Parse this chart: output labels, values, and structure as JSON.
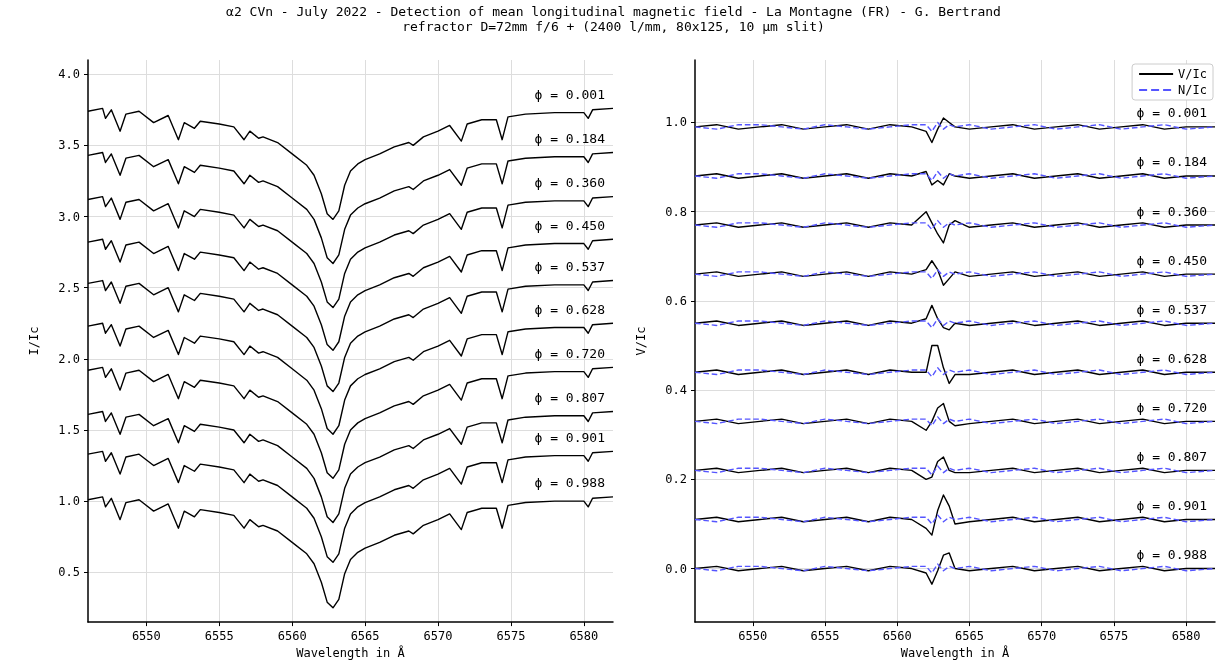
{
  "chart_data": [
    {
      "type": "line",
      "title": "α2 CVn - July 2022 - Detection of mean longitudinal magnetic field - La Montagne (FR) - G. Bertrand",
      "subtitle": "refractor D=72mm f/6 + (2400 l/mm, 80x125, 10 µm slit)",
      "xlabel": "Wavelength in Å",
      "ylabel": "I/Ic",
      "grid": true,
      "xlim": [
        6546,
        6582
      ],
      "xticks": [
        6550,
        6555,
        6560,
        6565,
        6570,
        6575,
        6580
      ],
      "ylim": [
        0.15,
        4.1
      ],
      "yticks": [
        {
          "value": 0.5,
          "label": "0.5"
        },
        {
          "value": 1,
          "label": "1.0"
        },
        {
          "value": 1.5,
          "label": "1.5"
        },
        {
          "value": 2,
          "label": "2.0"
        },
        {
          "value": 2.5,
          "label": "2.5"
        },
        {
          "value": 3,
          "label": "3.0"
        },
        {
          "value": 3.5,
          "label": "3.5"
        },
        {
          "value": 4,
          "label": "4.0"
        }
      ],
      "x": [
        6546,
        6547,
        6547.2,
        6547.6,
        6548.2,
        6548.6,
        6549.5,
        6550.5,
        6551.5,
        6552.2,
        6552.6,
        6553.3,
        6553.7,
        6555,
        6556,
        6556.7,
        6557.1,
        6557.7,
        6558,
        6559,
        6560,
        6561,
        6561.5,
        6562,
        6562.4,
        6562.8,
        6563.2,
        6563.6,
        6564,
        6564.5,
        6565,
        6566,
        6567,
        6568,
        6568.3,
        6569,
        6570,
        6570.8,
        6571.6,
        6572,
        6573,
        6574,
        6574.4,
        6574.8,
        6576,
        6578,
        6580,
        6580.3,
        6580.6,
        6582
      ],
      "series": [
        {
          "color": "#000000",
          "values": [
            3.74,
            3.76,
            3.69,
            3.75,
            3.6,
            3.72,
            3.74,
            3.66,
            3.71,
            3.54,
            3.66,
            3.62,
            3.67,
            3.65,
            3.63,
            3.54,
            3.6,
            3.55,
            3.56,
            3.52,
            3.44,
            3.36,
            3.29,
            3.16,
            3.02,
            2.98,
            3.04,
            3.22,
            3.32,
            3.37,
            3.4,
            3.44,
            3.49,
            3.52,
            3.5,
            3.56,
            3.6,
            3.64,
            3.53,
            3.65,
            3.68,
            3.68,
            3.54,
            3.7,
            3.72,
            3.73,
            3.73,
            3.69,
            3.75,
            3.76
          ]
        },
        {
          "color": "#000000",
          "values": [
            3.43,
            3.45,
            3.38,
            3.44,
            3.29,
            3.41,
            3.43,
            3.35,
            3.4,
            3.23,
            3.35,
            3.31,
            3.36,
            3.34,
            3.32,
            3.23,
            3.29,
            3.24,
            3.25,
            3.21,
            3.13,
            3.05,
            2.98,
            2.85,
            2.71,
            2.67,
            2.73,
            2.91,
            3.01,
            3.06,
            3.09,
            3.13,
            3.18,
            3.21,
            3.19,
            3.25,
            3.29,
            3.33,
            3.22,
            3.34,
            3.37,
            3.37,
            3.23,
            3.39,
            3.41,
            3.42,
            3.42,
            3.38,
            3.44,
            3.45
          ]
        },
        {
          "color": "#000000",
          "values": [
            3.12,
            3.14,
            3.07,
            3.13,
            2.98,
            3.1,
            3.12,
            3.04,
            3.09,
            2.92,
            3.04,
            3.0,
            3.05,
            3.03,
            3.01,
            2.92,
            2.98,
            2.93,
            2.94,
            2.9,
            2.82,
            2.74,
            2.67,
            2.54,
            2.4,
            2.36,
            2.42,
            2.6,
            2.7,
            2.75,
            2.78,
            2.82,
            2.87,
            2.9,
            2.88,
            2.94,
            2.98,
            3.02,
            2.91,
            3.03,
            3.06,
            3.06,
            2.92,
            3.08,
            3.1,
            3.11,
            3.11,
            3.07,
            3.13,
            3.14
          ]
        },
        {
          "color": "#000000",
          "values": [
            2.82,
            2.84,
            2.77,
            2.83,
            2.68,
            2.8,
            2.82,
            2.74,
            2.79,
            2.62,
            2.74,
            2.7,
            2.75,
            2.73,
            2.71,
            2.62,
            2.68,
            2.63,
            2.64,
            2.6,
            2.52,
            2.44,
            2.37,
            2.24,
            2.1,
            2.06,
            2.12,
            2.3,
            2.4,
            2.45,
            2.48,
            2.52,
            2.57,
            2.6,
            2.58,
            2.64,
            2.68,
            2.72,
            2.61,
            2.73,
            2.76,
            2.76,
            2.62,
            2.78,
            2.8,
            2.81,
            2.81,
            2.77,
            2.83,
            2.84
          ]
        },
        {
          "color": "#000000",
          "values": [
            2.53,
            2.55,
            2.48,
            2.54,
            2.39,
            2.51,
            2.53,
            2.45,
            2.5,
            2.33,
            2.45,
            2.41,
            2.46,
            2.44,
            2.42,
            2.33,
            2.39,
            2.34,
            2.35,
            2.31,
            2.23,
            2.15,
            2.08,
            1.95,
            1.81,
            1.77,
            1.83,
            2.01,
            2.11,
            2.16,
            2.19,
            2.23,
            2.28,
            2.31,
            2.29,
            2.35,
            2.39,
            2.43,
            2.32,
            2.44,
            2.47,
            2.47,
            2.33,
            2.49,
            2.51,
            2.52,
            2.52,
            2.48,
            2.54,
            2.55
          ]
        },
        {
          "color": "#000000",
          "values": [
            2.23,
            2.25,
            2.18,
            2.24,
            2.09,
            2.21,
            2.23,
            2.15,
            2.2,
            2.03,
            2.15,
            2.11,
            2.16,
            2.14,
            2.12,
            2.03,
            2.09,
            2.04,
            2.05,
            2.01,
            1.93,
            1.85,
            1.78,
            1.65,
            1.51,
            1.47,
            1.53,
            1.71,
            1.81,
            1.86,
            1.89,
            1.93,
            1.98,
            2.01,
            1.99,
            2.05,
            2.09,
            2.13,
            2.02,
            2.14,
            2.17,
            2.17,
            2.03,
            2.19,
            2.21,
            2.22,
            2.22,
            2.18,
            2.24,
            2.25
          ]
        },
        {
          "color": "#000000",
          "values": [
            1.92,
            1.94,
            1.87,
            1.93,
            1.78,
            1.9,
            1.92,
            1.84,
            1.89,
            1.72,
            1.84,
            1.8,
            1.85,
            1.83,
            1.81,
            1.72,
            1.78,
            1.73,
            1.74,
            1.7,
            1.62,
            1.54,
            1.47,
            1.34,
            1.2,
            1.16,
            1.22,
            1.4,
            1.5,
            1.55,
            1.58,
            1.62,
            1.67,
            1.7,
            1.68,
            1.74,
            1.78,
            1.82,
            1.71,
            1.83,
            1.86,
            1.86,
            1.72,
            1.88,
            1.9,
            1.91,
            1.91,
            1.87,
            1.93,
            1.94
          ]
        },
        {
          "color": "#000000",
          "values": [
            1.61,
            1.63,
            1.56,
            1.62,
            1.47,
            1.59,
            1.61,
            1.53,
            1.58,
            1.41,
            1.53,
            1.49,
            1.54,
            1.52,
            1.5,
            1.41,
            1.47,
            1.42,
            1.43,
            1.39,
            1.31,
            1.23,
            1.16,
            1.03,
            0.89,
            0.85,
            0.91,
            1.09,
            1.19,
            1.24,
            1.27,
            1.31,
            1.36,
            1.39,
            1.37,
            1.43,
            1.47,
            1.51,
            1.4,
            1.52,
            1.55,
            1.55,
            1.41,
            1.57,
            1.59,
            1.6,
            1.6,
            1.56,
            1.62,
            1.63
          ]
        },
        {
          "color": "#000000",
          "values": [
            1.33,
            1.35,
            1.28,
            1.34,
            1.19,
            1.31,
            1.33,
            1.25,
            1.3,
            1.13,
            1.25,
            1.21,
            1.26,
            1.24,
            1.22,
            1.13,
            1.19,
            1.14,
            1.15,
            1.11,
            1.03,
            0.95,
            0.88,
            0.75,
            0.61,
            0.57,
            0.63,
            0.81,
            0.91,
            0.96,
            0.99,
            1.03,
            1.08,
            1.11,
            1.09,
            1.15,
            1.19,
            1.23,
            1.12,
            1.24,
            1.27,
            1.27,
            1.13,
            1.29,
            1.31,
            1.32,
            1.32,
            1.28,
            1.34,
            1.35
          ]
        },
        {
          "color": "#000000",
          "values": [
            1.01,
            1.03,
            0.96,
            1.02,
            0.87,
            0.99,
            1.01,
            0.93,
            0.98,
            0.81,
            0.93,
            0.89,
            0.94,
            0.92,
            0.9,
            0.81,
            0.87,
            0.82,
            0.83,
            0.79,
            0.71,
            0.63,
            0.56,
            0.43,
            0.29,
            0.25,
            0.31,
            0.49,
            0.59,
            0.64,
            0.67,
            0.71,
            0.76,
            0.79,
            0.77,
            0.83,
            0.87,
            0.91,
            0.8,
            0.92,
            0.95,
            0.95,
            0.81,
            0.97,
            0.99,
            1.0,
            1.0,
            0.96,
            1.02,
            1.03
          ]
        }
      ],
      "annotations": [
        "ϕ = 0.001",
        "ϕ = 0.184",
        "ϕ = 0.360",
        "ϕ = 0.450",
        "ϕ = 0.537",
        "ϕ = 0.628",
        "ϕ = 0.720",
        "ϕ = 0.807",
        "ϕ = 0.901",
        "ϕ = 0.988"
      ]
    },
    {
      "type": "line",
      "xlabel": "Wavelength in Å",
      "ylabel": "V/Ic",
      "grid": true,
      "legend": "top right",
      "xlim": [
        6546,
        6582
      ],
      "xticks": [
        6550,
        6555,
        6560,
        6565,
        6570,
        6575,
        6580
      ],
      "ylim": [
        -0.12,
        1.14
      ],
      "yticks": [
        {
          "value": 0,
          "label": "0.0"
        },
        {
          "value": 0.2,
          "label": "0.2"
        },
        {
          "value": 0.4,
          "label": "0.4"
        },
        {
          "value": 0.6,
          "label": "0.6"
        },
        {
          "value": 0.8,
          "label": "0.8"
        },
        {
          "value": 1,
          "label": "1.0"
        }
      ],
      "x": [
        6546,
        6547.5,
        6549,
        6550.5,
        6552,
        6553.5,
        6555,
        6556.5,
        6558,
        6559.5,
        6561,
        6562,
        6562.4,
        6562.8,
        6563.2,
        6563.6,
        6564,
        6565,
        6566.5,
        6568,
        6569.5,
        6571,
        6572.5,
        6574,
        6575.5,
        6577,
        6578.5,
        6580,
        6582
      ],
      "series": [
        {
          "name": "V/Ic",
          "color": "#000000",
          "line_style": "solid",
          "values": [
            0.99,
            0.995,
            0.985,
            0.99,
            0.995,
            0.985,
            0.99,
            0.995,
            0.985,
            0.995,
            0.99,
            0.98,
            0.955,
            0.985,
            1.01,
            1.0,
            0.99,
            0.985,
            0.99,
            0.995,
            0.985,
            0.99,
            0.995,
            0.985,
            0.99,
            0.995,
            0.985,
            0.99,
            0.99
          ]
        },
        {
          "name": "N/Ic",
          "color": "#5555ff",
          "line_style": "dashed",
          "values": [
            0.99,
            0.985,
            0.995,
            0.995,
            0.99,
            0.985,
            0.995,
            0.99,
            0.985,
            0.99,
            0.995,
            0.995,
            0.98,
            1.0,
            0.985,
            0.995,
            0.99,
            0.995,
            0.985,
            0.99,
            0.995,
            0.985,
            0.99,
            0.995,
            0.985,
            0.99,
            0.995,
            0.985,
            0.99
          ]
        },
        {
          "color": "#000000",
          "line_style": "solid",
          "values": [
            0.88,
            0.885,
            0.875,
            0.88,
            0.885,
            0.875,
            0.88,
            0.885,
            0.875,
            0.885,
            0.88,
            0.89,
            0.86,
            0.87,
            0.86,
            0.885,
            0.88,
            0.875,
            0.88,
            0.885,
            0.875,
            0.88,
            0.885,
            0.875,
            0.88,
            0.885,
            0.875,
            0.88,
            0.88
          ]
        },
        {
          "color": "#5555ff",
          "line_style": "dashed",
          "values": [
            0.88,
            0.875,
            0.885,
            0.885,
            0.88,
            0.875,
            0.885,
            0.88,
            0.875,
            0.88,
            0.885,
            0.885,
            0.87,
            0.89,
            0.875,
            0.885,
            0.88,
            0.885,
            0.875,
            0.88,
            0.885,
            0.875,
            0.88,
            0.885,
            0.875,
            0.88,
            0.885,
            0.875,
            0.88
          ]
        },
        {
          "color": "#000000",
          "line_style": "solid",
          "values": [
            0.77,
            0.775,
            0.765,
            0.77,
            0.775,
            0.765,
            0.77,
            0.775,
            0.765,
            0.775,
            0.77,
            0.8,
            0.775,
            0.75,
            0.73,
            0.77,
            0.78,
            0.765,
            0.77,
            0.775,
            0.765,
            0.77,
            0.775,
            0.765,
            0.77,
            0.775,
            0.765,
            0.77,
            0.77
          ]
        },
        {
          "color": "#5555ff",
          "line_style": "dashed",
          "values": [
            0.77,
            0.765,
            0.775,
            0.775,
            0.77,
            0.765,
            0.775,
            0.77,
            0.765,
            0.77,
            0.775,
            0.775,
            0.76,
            0.78,
            0.765,
            0.775,
            0.77,
            0.775,
            0.765,
            0.77,
            0.775,
            0.765,
            0.77,
            0.775,
            0.765,
            0.77,
            0.775,
            0.765,
            0.77
          ]
        },
        {
          "color": "#000000",
          "line_style": "solid",
          "values": [
            0.66,
            0.665,
            0.655,
            0.66,
            0.665,
            0.655,
            0.66,
            0.665,
            0.655,
            0.665,
            0.66,
            0.67,
            0.69,
            0.67,
            0.635,
            0.65,
            0.665,
            0.655,
            0.66,
            0.665,
            0.655,
            0.66,
            0.665,
            0.655,
            0.66,
            0.665,
            0.655,
            0.66,
            0.66
          ]
        },
        {
          "color": "#5555ff",
          "line_style": "dashed",
          "values": [
            0.66,
            0.655,
            0.665,
            0.665,
            0.66,
            0.655,
            0.665,
            0.66,
            0.655,
            0.66,
            0.665,
            0.665,
            0.65,
            0.67,
            0.655,
            0.665,
            0.66,
            0.665,
            0.655,
            0.66,
            0.665,
            0.655,
            0.66,
            0.665,
            0.655,
            0.66,
            0.665,
            0.655,
            0.66
          ]
        },
        {
          "color": "#000000",
          "line_style": "solid",
          "values": [
            0.55,
            0.555,
            0.545,
            0.55,
            0.555,
            0.545,
            0.55,
            0.555,
            0.545,
            0.555,
            0.55,
            0.56,
            0.59,
            0.56,
            0.54,
            0.535,
            0.55,
            0.545,
            0.55,
            0.555,
            0.545,
            0.55,
            0.555,
            0.545,
            0.55,
            0.555,
            0.545,
            0.55,
            0.55
          ]
        },
        {
          "color": "#5555ff",
          "line_style": "dashed",
          "values": [
            0.55,
            0.545,
            0.555,
            0.555,
            0.55,
            0.545,
            0.555,
            0.55,
            0.545,
            0.55,
            0.555,
            0.555,
            0.54,
            0.56,
            0.545,
            0.555,
            0.55,
            0.555,
            0.545,
            0.55,
            0.555,
            0.545,
            0.55,
            0.555,
            0.545,
            0.55,
            0.555,
            0.545,
            0.55
          ]
        },
        {
          "color": "#000000",
          "line_style": "solid",
          "values": [
            0.44,
            0.445,
            0.435,
            0.44,
            0.445,
            0.435,
            0.44,
            0.445,
            0.435,
            0.445,
            0.44,
            0.44,
            0.5,
            0.5,
            0.45,
            0.415,
            0.435,
            0.435,
            0.44,
            0.445,
            0.435,
            0.44,
            0.445,
            0.435,
            0.44,
            0.445,
            0.435,
            0.44,
            0.44
          ]
        },
        {
          "color": "#5555ff",
          "line_style": "dashed",
          "values": [
            0.44,
            0.435,
            0.445,
            0.445,
            0.44,
            0.435,
            0.445,
            0.44,
            0.435,
            0.44,
            0.445,
            0.445,
            0.43,
            0.45,
            0.435,
            0.445,
            0.44,
            0.445,
            0.435,
            0.44,
            0.445,
            0.435,
            0.44,
            0.445,
            0.435,
            0.44,
            0.445,
            0.435,
            0.44
          ]
        },
        {
          "color": "#000000",
          "line_style": "solid",
          "values": [
            0.33,
            0.335,
            0.325,
            0.33,
            0.335,
            0.325,
            0.33,
            0.335,
            0.325,
            0.335,
            0.33,
            0.31,
            0.33,
            0.36,
            0.37,
            0.33,
            0.32,
            0.325,
            0.33,
            0.335,
            0.325,
            0.33,
            0.335,
            0.325,
            0.33,
            0.335,
            0.325,
            0.33,
            0.33
          ]
        },
        {
          "color": "#5555ff",
          "line_style": "dashed",
          "values": [
            0.33,
            0.325,
            0.335,
            0.335,
            0.33,
            0.325,
            0.335,
            0.33,
            0.325,
            0.33,
            0.335,
            0.335,
            0.32,
            0.34,
            0.325,
            0.335,
            0.33,
            0.335,
            0.325,
            0.33,
            0.335,
            0.325,
            0.33,
            0.335,
            0.325,
            0.33,
            0.335,
            0.325,
            0.33
          ]
        },
        {
          "color": "#000000",
          "line_style": "solid",
          "values": [
            0.22,
            0.225,
            0.215,
            0.22,
            0.225,
            0.215,
            0.22,
            0.225,
            0.215,
            0.225,
            0.22,
            0.2,
            0.205,
            0.24,
            0.25,
            0.22,
            0.215,
            0.215,
            0.22,
            0.225,
            0.215,
            0.22,
            0.225,
            0.215,
            0.22,
            0.225,
            0.215,
            0.22,
            0.22
          ]
        },
        {
          "color": "#5555ff",
          "line_style": "dashed",
          "values": [
            0.22,
            0.215,
            0.225,
            0.225,
            0.22,
            0.215,
            0.225,
            0.22,
            0.215,
            0.22,
            0.225,
            0.225,
            0.21,
            0.23,
            0.215,
            0.225,
            0.22,
            0.225,
            0.215,
            0.22,
            0.225,
            0.215,
            0.22,
            0.225,
            0.215,
            0.22,
            0.225,
            0.215,
            0.22
          ]
        },
        {
          "color": "#000000",
          "line_style": "solid",
          "values": [
            0.11,
            0.115,
            0.105,
            0.11,
            0.115,
            0.105,
            0.11,
            0.115,
            0.105,
            0.115,
            0.11,
            0.09,
            0.075,
            0.13,
            0.165,
            0.14,
            0.1,
            0.105,
            0.11,
            0.115,
            0.105,
            0.11,
            0.115,
            0.105,
            0.11,
            0.115,
            0.105,
            0.11,
            0.11
          ]
        },
        {
          "color": "#5555ff",
          "line_style": "dashed",
          "values": [
            0.11,
            0.105,
            0.115,
            0.115,
            0.11,
            0.105,
            0.115,
            0.11,
            0.105,
            0.11,
            0.115,
            0.115,
            0.1,
            0.12,
            0.105,
            0.115,
            0.11,
            0.115,
            0.105,
            0.11,
            0.115,
            0.105,
            0.11,
            0.115,
            0.105,
            0.11,
            0.115,
            0.105,
            0.11
          ]
        },
        {
          "color": "#000000",
          "line_style": "solid",
          "values": [
            0,
            0.005,
            -0.005,
            0,
            0.005,
            -0.005,
            0,
            0.005,
            -0.005,
            0.005,
            0,
            -0.01,
            -0.035,
            -0.005,
            0.03,
            0.035,
            0,
            -0.005,
            0,
            0.005,
            -0.005,
            0,
            0.005,
            -0.005,
            0,
            0.005,
            -0.005,
            0,
            0
          ]
        },
        {
          "color": "#5555ff",
          "line_style": "dashed",
          "values": [
            0,
            -0.005,
            0.005,
            0.005,
            0,
            -0.005,
            0.005,
            0,
            -0.005,
            0,
            0.005,
            0.005,
            -0.01,
            0.01,
            -0.005,
            0.005,
            0,
            0.005,
            -0.005,
            0,
            0.005,
            -0.005,
            0,
            0.005,
            -0.005,
            0,
            0.005,
            -0.005,
            0
          ]
        }
      ],
      "annotations": [
        "ϕ = 0.001",
        "ϕ = 0.184",
        "ϕ = 0.360",
        "ϕ = 0.450",
        "ϕ = 0.537",
        "ϕ = 0.628",
        "ϕ = 0.720",
        "ϕ = 0.807",
        "ϕ = 0.901",
        "ϕ = 0.988"
      ]
    }
  ]
}
